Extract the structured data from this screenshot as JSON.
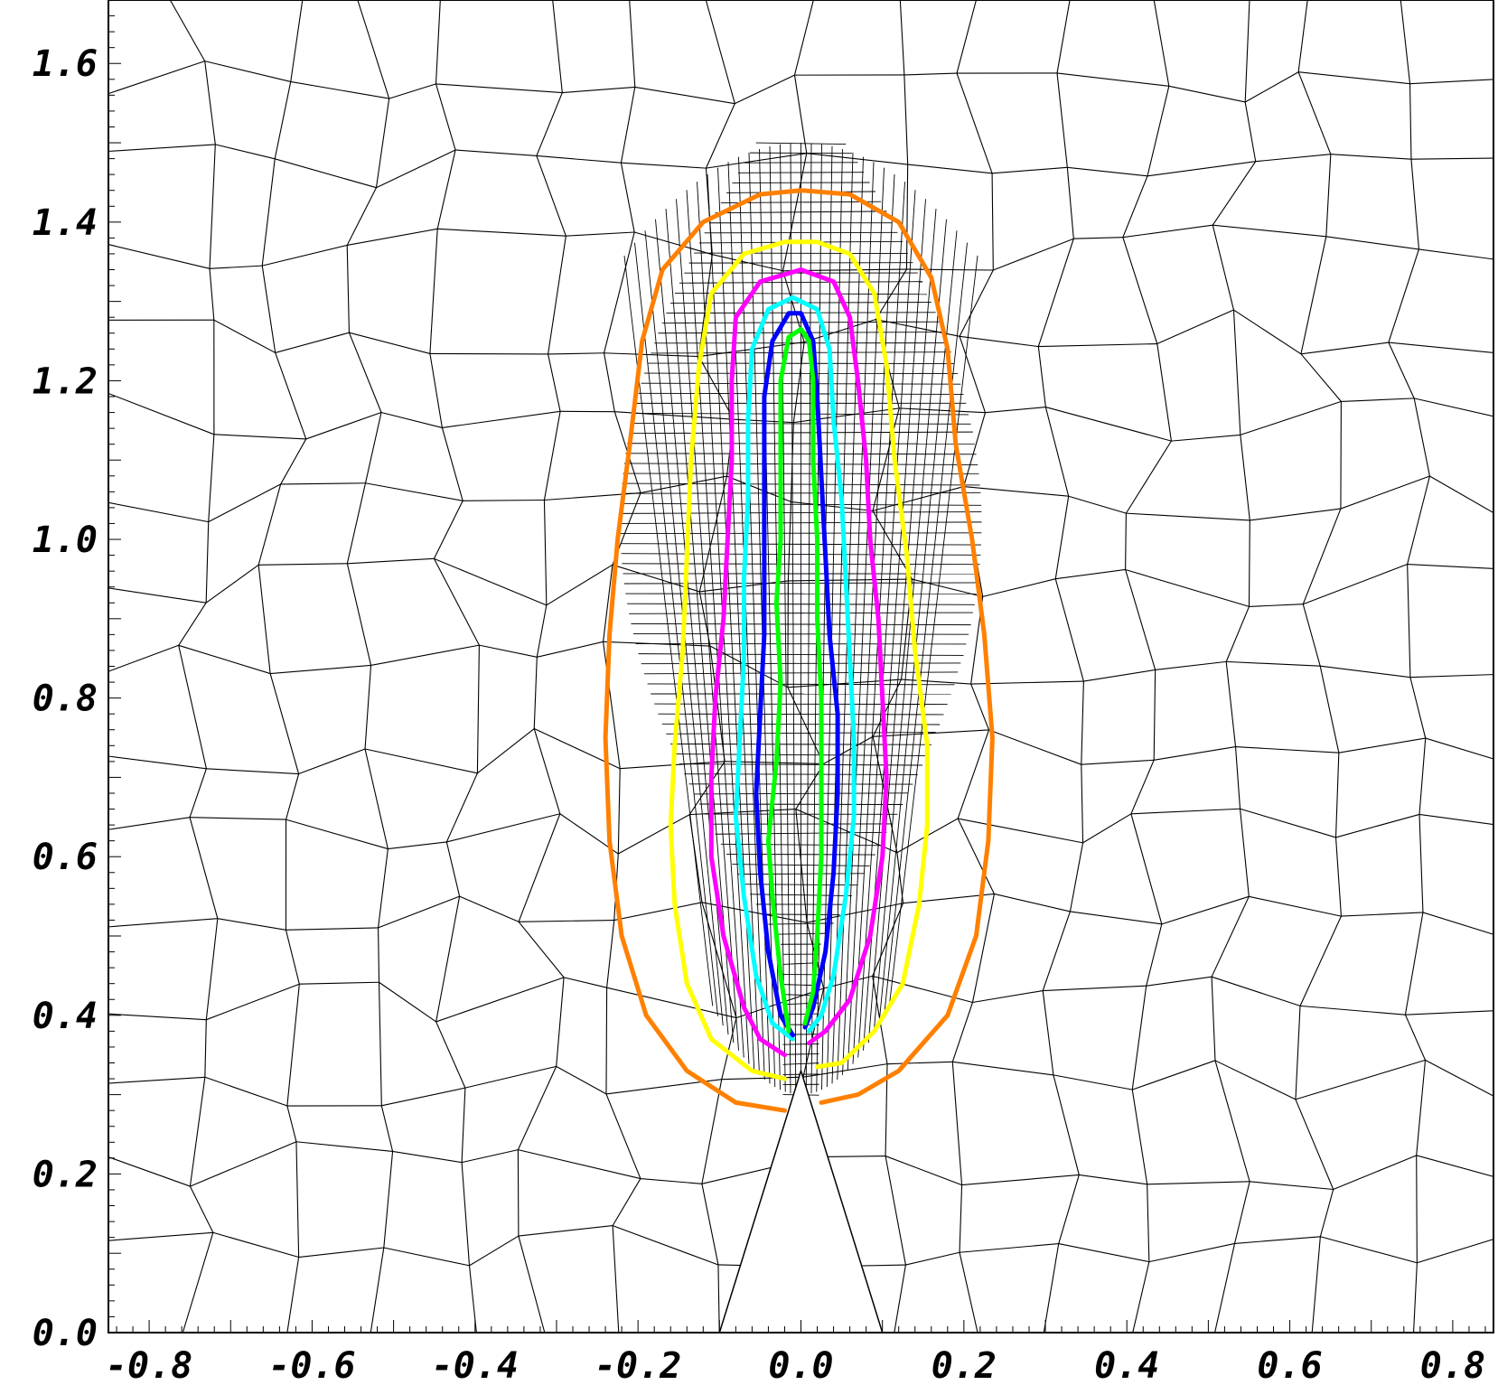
{
  "chart_data": {
    "type": "scatter",
    "title": "",
    "xlabel": "",
    "ylabel": "",
    "xlim": [
      -0.85,
      0.85
    ],
    "ylim": [
      0.0,
      1.68
    ],
    "grid": false,
    "x_ticks": [
      "-0.8",
      "-0.6",
      "-0.4",
      "-0.2",
      "0.0",
      "0.2",
      "0.4",
      "0.6",
      "0.8"
    ],
    "y_ticks": [
      "0.0",
      "0.2",
      "0.4",
      "0.6",
      "0.8",
      "1.0",
      "1.2",
      "1.4",
      "1.6"
    ],
    "wedge": {
      "tip": [
        0.0,
        0.33
      ],
      "base_left": [
        -0.1,
        0.0
      ],
      "base_right": [
        0.1,
        0.0
      ],
      "color": "#ffffff"
    },
    "series": [
      {
        "color": "#ff8000",
        "points": [
          [
            -0.02,
            0.28
          ],
          [
            -0.08,
            0.29
          ],
          [
            -0.14,
            0.33
          ],
          [
            -0.19,
            0.4
          ],
          [
            -0.22,
            0.5
          ],
          [
            -0.235,
            0.62
          ],
          [
            -0.24,
            0.75
          ],
          [
            -0.235,
            0.88
          ],
          [
            -0.225,
            1.0
          ],
          [
            -0.21,
            1.12
          ],
          [
            -0.195,
            1.25
          ],
          [
            -0.17,
            1.34
          ],
          [
            -0.12,
            1.4
          ],
          [
            -0.05,
            1.435
          ],
          [
            0.0,
            1.44
          ],
          [
            0.06,
            1.435
          ],
          [
            0.12,
            1.4
          ],
          [
            0.16,
            1.33
          ],
          [
            0.18,
            1.24
          ],
          [
            0.19,
            1.12
          ],
          [
            0.21,
            1.0
          ],
          [
            0.225,
            0.88
          ],
          [
            0.235,
            0.75
          ],
          [
            0.23,
            0.62
          ],
          [
            0.215,
            0.5
          ],
          [
            0.18,
            0.4
          ],
          [
            0.12,
            0.33
          ],
          [
            0.07,
            0.3
          ],
          [
            0.025,
            0.29
          ]
        ]
      },
      {
        "color": "#ffff00",
        "points": [
          [
            -0.02,
            0.32
          ],
          [
            -0.06,
            0.33
          ],
          [
            -0.11,
            0.37
          ],
          [
            -0.14,
            0.44
          ],
          [
            -0.155,
            0.54
          ],
          [
            -0.16,
            0.64
          ],
          [
            -0.155,
            0.74
          ],
          [
            -0.145,
            0.86
          ],
          [
            -0.14,
            0.98
          ],
          [
            -0.135,
            1.1
          ],
          [
            -0.125,
            1.22
          ],
          [
            -0.11,
            1.31
          ],
          [
            -0.07,
            1.36
          ],
          [
            -0.02,
            1.375
          ],
          [
            0.02,
            1.375
          ],
          [
            0.06,
            1.36
          ],
          [
            0.09,
            1.31
          ],
          [
            0.105,
            1.22
          ],
          [
            0.115,
            1.1
          ],
          [
            0.13,
            0.98
          ],
          [
            0.14,
            0.86
          ],
          [
            0.155,
            0.74
          ],
          [
            0.155,
            0.64
          ],
          [
            0.145,
            0.54
          ],
          [
            0.125,
            0.44
          ],
          [
            0.09,
            0.38
          ],
          [
            0.05,
            0.34
          ],
          [
            0.02,
            0.335
          ]
        ]
      },
      {
        "color": "#ff00ff",
        "points": [
          [
            -0.02,
            0.35
          ],
          [
            -0.05,
            0.37
          ],
          [
            -0.07,
            0.41
          ],
          [
            -0.095,
            0.5
          ],
          [
            -0.11,
            0.6
          ],
          [
            -0.11,
            0.7
          ],
          [
            -0.105,
            0.8
          ],
          [
            -0.095,
            0.9
          ],
          [
            -0.09,
            1.0
          ],
          [
            -0.085,
            1.1
          ],
          [
            -0.085,
            1.2
          ],
          [
            -0.08,
            1.28
          ],
          [
            -0.05,
            1.325
          ],
          [
            0.0,
            1.34
          ],
          [
            0.04,
            1.325
          ],
          [
            0.06,
            1.28
          ],
          [
            0.07,
            1.2
          ],
          [
            0.08,
            1.1
          ],
          [
            0.085,
            1.0
          ],
          [
            0.095,
            0.9
          ],
          [
            0.1,
            0.8
          ],
          [
            0.105,
            0.7
          ],
          [
            0.1,
            0.6
          ],
          [
            0.085,
            0.5
          ],
          [
            0.06,
            0.42
          ],
          [
            0.03,
            0.38
          ],
          [
            0.01,
            0.365
          ]
        ]
      },
      {
        "color": "#00ffff",
        "points": [
          [
            -0.01,
            0.37
          ],
          [
            -0.035,
            0.39
          ],
          [
            -0.055,
            0.45
          ],
          [
            -0.07,
            0.55
          ],
          [
            -0.08,
            0.65
          ],
          [
            -0.075,
            0.75
          ],
          [
            -0.07,
            0.85
          ],
          [
            -0.07,
            0.95
          ],
          [
            -0.065,
            1.05
          ],
          [
            -0.065,
            1.15
          ],
          [
            -0.06,
            1.24
          ],
          [
            -0.04,
            1.29
          ],
          [
            -0.01,
            1.305
          ],
          [
            0.02,
            1.29
          ],
          [
            0.035,
            1.24
          ],
          [
            0.04,
            1.15
          ],
          [
            0.05,
            1.05
          ],
          [
            0.055,
            0.95
          ],
          [
            0.06,
            0.85
          ],
          [
            0.065,
            0.75
          ],
          [
            0.065,
            0.65
          ],
          [
            0.055,
            0.55
          ],
          [
            0.04,
            0.45
          ],
          [
            0.025,
            0.4
          ],
          [
            0.01,
            0.38
          ]
        ]
      },
      {
        "color": "#0000ff",
        "points": [
          [
            -0.01,
            0.375
          ],
          [
            -0.025,
            0.4
          ],
          [
            -0.04,
            0.48
          ],
          [
            -0.05,
            0.58
          ],
          [
            -0.055,
            0.68
          ],
          [
            -0.05,
            0.78
          ],
          [
            -0.045,
            0.88
          ],
          [
            -0.045,
            0.98
          ],
          [
            -0.045,
            1.08
          ],
          [
            -0.045,
            1.18
          ],
          [
            -0.035,
            1.25
          ],
          [
            -0.015,
            1.285
          ],
          [
            0.0,
            1.285
          ],
          [
            0.015,
            1.25
          ],
          [
            0.02,
            1.18
          ],
          [
            0.025,
            1.08
          ],
          [
            0.03,
            0.98
          ],
          [
            0.035,
            0.88
          ],
          [
            0.045,
            0.78
          ],
          [
            0.045,
            0.68
          ],
          [
            0.04,
            0.58
          ],
          [
            0.03,
            0.48
          ],
          [
            0.015,
            0.41
          ],
          [
            0.005,
            0.385
          ]
        ]
      },
      {
        "color": "#00ff00",
        "points": [
          [
            -0.015,
            0.38
          ],
          [
            -0.025,
            0.45
          ],
          [
            -0.035,
            0.55
          ],
          [
            -0.04,
            0.62
          ],
          [
            -0.03,
            0.72
          ],
          [
            -0.025,
            0.82
          ],
          [
            -0.03,
            0.92
          ],
          [
            -0.025,
            1.0
          ],
          [
            -0.025,
            1.1
          ],
          [
            -0.025,
            1.2
          ],
          [
            -0.015,
            1.255
          ],
          [
            0.0,
            1.265
          ],
          [
            0.01,
            1.25
          ],
          [
            0.015,
            1.2
          ],
          [
            0.015,
            1.1
          ],
          [
            0.02,
            1.0
          ],
          [
            0.02,
            0.9
          ],
          [
            0.025,
            0.8
          ],
          [
            0.025,
            0.7
          ],
          [
            0.025,
            0.6
          ],
          [
            0.02,
            0.5
          ],
          [
            0.015,
            0.43
          ],
          [
            0.005,
            0.39
          ]
        ]
      }
    ]
  }
}
